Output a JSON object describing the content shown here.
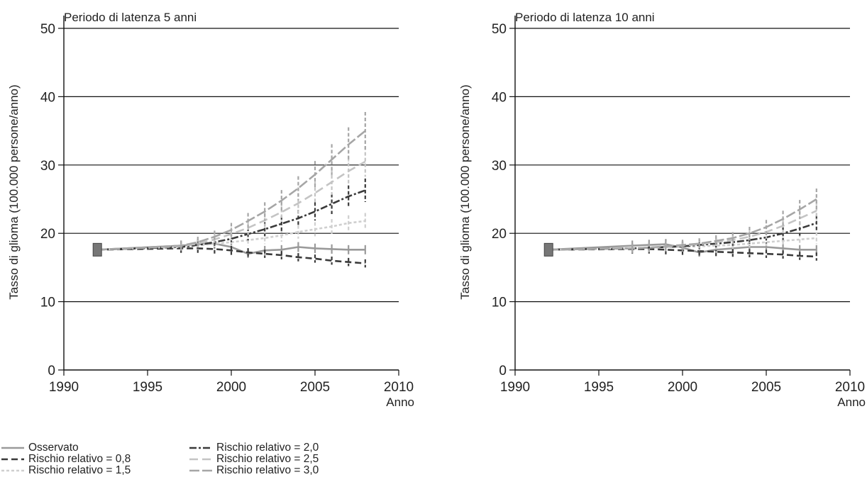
{
  "chart_data": [
    {
      "type": "line",
      "title": "Periodo di latenza 5 anni",
      "xlabel": "Anno",
      "ylabel": "Tasso di glioma (100.000 persone/anno)",
      "xlim": [
        1990,
        2010
      ],
      "ylim": [
        0,
        50
      ],
      "xticks": [
        1990,
        1995,
        2000,
        2005,
        2010
      ],
      "yticks": [
        0,
        10,
        20,
        30,
        40,
        50
      ],
      "grid": "horizontal",
      "x": [
        1992,
        1997,
        1998,
        1999,
        2000,
        2001,
        2002,
        2003,
        2004,
        2005,
        2006,
        2007,
        2008
      ],
      "series": [
        {
          "name": "Osservato",
          "values": [
            17.6,
            18.2,
            18.4,
            18.5,
            18.0,
            17.0,
            17.5,
            17.6,
            18.0,
            17.8,
            17.7,
            17.6,
            17.6
          ]
        },
        {
          "name": "Rischio relativo = 0,8",
          "values": [
            17.6,
            17.8,
            17.8,
            17.7,
            17.5,
            17.2,
            17.0,
            16.8,
            16.5,
            16.3,
            16.0,
            15.8,
            15.6
          ]
        },
        {
          "name": "Rischio relativo = 1,5",
          "values": [
            17.6,
            18.0,
            18.2,
            18.5,
            18.7,
            19.0,
            19.3,
            19.7,
            20.2,
            20.6,
            21.0,
            21.5,
            21.8
          ]
        },
        {
          "name": "Rischio relativo = 2,0",
          "values": [
            17.6,
            18.0,
            18.3,
            18.7,
            19.2,
            19.9,
            20.6,
            21.4,
            22.2,
            23.2,
            24.3,
            25.4,
            26.3
          ]
        },
        {
          "name": "Rischio relativo = 2,5",
          "values": [
            17.6,
            18.1,
            18.5,
            19.1,
            19.9,
            20.8,
            21.9,
            23.1,
            24.4,
            25.9,
            27.5,
            29.1,
            30.5
          ]
        },
        {
          "name": "Rischio relativo = 3,0",
          "values": [
            17.6,
            18.2,
            18.7,
            19.5,
            20.5,
            21.8,
            23.2,
            24.8,
            26.6,
            28.6,
            30.8,
            33.0,
            35.0
          ]
        }
      ]
    },
    {
      "type": "line",
      "title": "Periodo di latenza 10 anni",
      "xlabel": "Anno",
      "ylabel": "Tasso di glioma (100.000 persone/anno)",
      "xlim": [
        1990,
        2010
      ],
      "ylim": [
        0,
        50
      ],
      "xticks": [
        1990,
        1995,
        2000,
        2005,
        2010
      ],
      "yticks": [
        0,
        10,
        20,
        30,
        40,
        50
      ],
      "grid": "horizontal",
      "x": [
        1992,
        1997,
        1998,
        1999,
        2000,
        2001,
        2002,
        2003,
        2004,
        2005,
        2006,
        2007,
        2008
      ],
      "series": [
        {
          "name": "Osservato",
          "values": [
            17.6,
            18.2,
            18.3,
            18.4,
            17.9,
            17.2,
            17.6,
            17.8,
            18.0,
            18.0,
            17.8,
            17.6,
            17.6
          ]
        },
        {
          "name": "Rischio relativo = 0,8",
          "values": [
            17.6,
            17.7,
            17.7,
            17.6,
            17.5,
            17.4,
            17.3,
            17.2,
            17.1,
            17.0,
            16.9,
            16.7,
            16.6
          ]
        },
        {
          "name": "Rischio relativo = 1,5",
          "values": [
            17.6,
            17.8,
            17.9,
            18.0,
            18.0,
            18.1,
            18.2,
            18.3,
            18.5,
            18.7,
            18.9,
            19.1,
            19.3
          ]
        },
        {
          "name": "Rischio relativo = 2,0",
          "values": [
            17.6,
            17.8,
            17.9,
            18.0,
            18.1,
            18.3,
            18.5,
            18.7,
            19.0,
            19.4,
            20.0,
            20.7,
            21.5
          ]
        },
        {
          "name": "Rischio relativo = 2,5",
          "values": [
            17.6,
            17.8,
            17.9,
            18.0,
            18.2,
            18.4,
            18.7,
            19.0,
            19.5,
            20.2,
            21.1,
            22.2,
            23.3
          ]
        },
        {
          "name": "Rischio relativo = 3,0",
          "values": [
            17.6,
            17.8,
            17.9,
            18.1,
            18.3,
            18.5,
            18.9,
            19.3,
            20.0,
            20.9,
            22.1,
            23.5,
            25.0
          ]
        }
      ]
    }
  ],
  "series_style": [
    {
      "color": "#9a9a9a",
      "dash": "none"
    },
    {
      "color": "#3a3a3a",
      "dash": "9 5"
    },
    {
      "color": "#cfcfcf",
      "dash": "4 3"
    },
    {
      "color": "#3a3a3a",
      "dash": "10 3 3 3"
    },
    {
      "color": "#c4c4c4",
      "dash": "12 6"
    },
    {
      "color": "#a6a6a6",
      "dash": "14 4"
    }
  ],
  "legend": {
    "entries": [
      {
        "label": "Osservato"
      },
      {
        "label": "Rischio relativo = 0,8"
      },
      {
        "label": "Rischio relativo = 1,5"
      },
      {
        "label": "Rischio relativo = 2,0"
      },
      {
        "label": "Rischio relativo = 2,5"
      },
      {
        "label": "Rischio relativo = 3,0"
      }
    ]
  }
}
